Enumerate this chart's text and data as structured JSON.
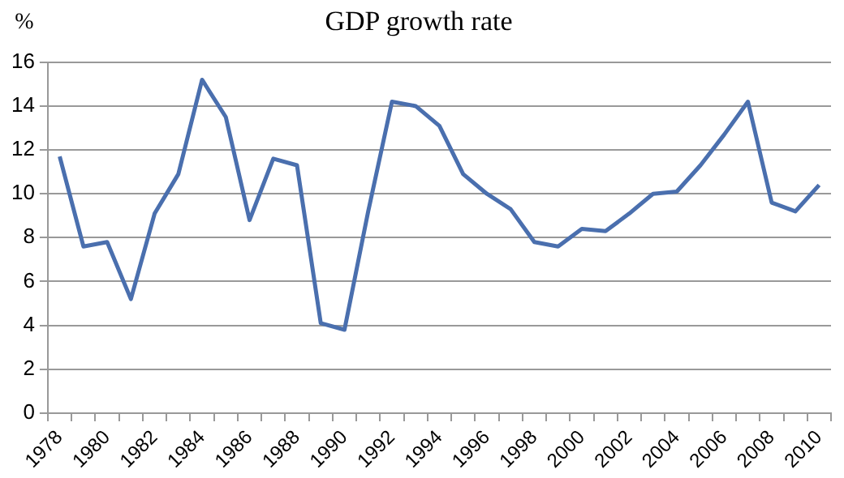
{
  "chart_data": {
    "type": "line",
    "title": "GDP growth rate",
    "ylabel": "%",
    "categories": [
      "1978",
      null,
      "1980",
      null,
      "1982",
      null,
      "1984",
      null,
      "1986",
      null,
      "1988",
      null,
      "1990",
      null,
      "1992",
      null,
      "1994",
      null,
      "1996",
      null,
      "1998",
      null,
      "2000",
      null,
      "2002",
      null,
      "2004",
      null,
      "2006",
      null,
      "2008",
      null,
      "2010"
    ],
    "series": [
      {
        "color": "#4a6fae",
        "values": [
          11.7,
          7.6,
          7.8,
          5.2,
          9.1,
          10.9,
          15.2,
          13.5,
          8.8,
          11.6,
          11.3,
          4.1,
          3.8,
          9.2,
          14.2,
          14.0,
          13.1,
          10.9,
          10.0,
          9.3,
          7.8,
          7.6,
          8.4,
          8.3,
          9.1,
          10.0,
          10.1,
          11.3,
          12.7,
          14.2,
          9.6,
          9.2,
          10.4
        ]
      }
    ],
    "ylim": [
      0,
      16
    ],
    "yticks": [
      0,
      2,
      4,
      6,
      8,
      10,
      12,
      14,
      16
    ],
    "grid": "y",
    "legend": false,
    "marker": "none",
    "line_style": "solid"
  }
}
